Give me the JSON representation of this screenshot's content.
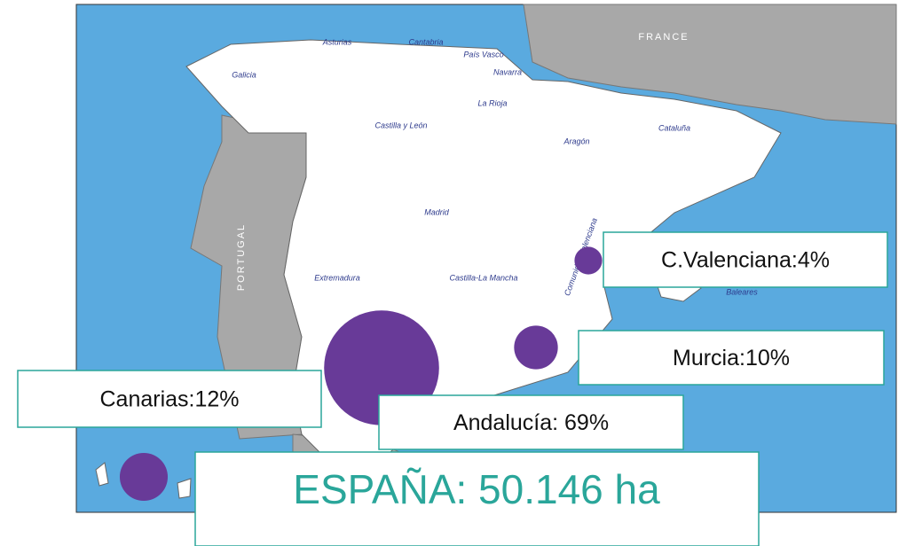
{
  "map": {
    "countries": [
      "FRANCE",
      "PORTUGAL"
    ],
    "regions": [
      "Asturias",
      "Cantabria",
      "País Vasco",
      "Navarra",
      "Galicia",
      "La Rioja",
      "Castilla y León",
      "Cataluña",
      "Aragón",
      "Madrid",
      "Comunidad Valenciana",
      "Extremadura",
      "Castilla-La Mancha",
      "Baleares"
    ]
  },
  "bubbles": [
    {
      "label": "C.Valenciana:4%",
      "value": 4
    },
    {
      "label": "Murcia:10%",
      "value": 10
    },
    {
      "label": "Canarias:12%",
      "value": 12
    },
    {
      "label": "Andalucía: 69%",
      "value": 69
    }
  ],
  "total": "ESPAÑA: 50.146 ha"
}
